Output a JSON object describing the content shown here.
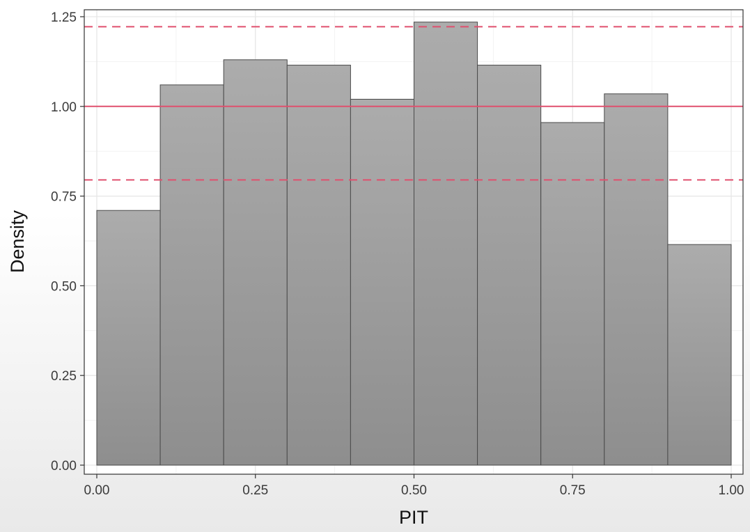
{
  "chart_data": {
    "type": "bar",
    "histogram": true,
    "title": "",
    "xlabel": "PIT",
    "ylabel": "Density",
    "bin_edges": [
      0,
      0.1,
      0.2,
      0.3,
      0.4,
      0.5,
      0.6,
      0.7,
      0.8,
      0.9,
      1.0
    ],
    "values": [
      0.71,
      1.06,
      1.13,
      1.115,
      1.02,
      1.235,
      1.115,
      0.955,
      1.035,
      0.615
    ],
    "xlim": [
      -0.02,
      1.02
    ],
    "ylim": [
      0,
      1.25
    ],
    "xticks": [
      0,
      0.25,
      0.5,
      0.75,
      1.0
    ],
    "xtick_labels": [
      "0.00",
      "0.25",
      "0.50",
      "0.75",
      "1.00"
    ],
    "yticks": [
      0,
      0.25,
      0.5,
      0.75,
      1.0,
      1.25
    ],
    "ytick_labels": [
      "0.00",
      "0.25",
      "0.50",
      "0.75",
      "1.00",
      "1.25"
    ],
    "reference_lines": [
      {
        "y": 1.0,
        "style": "solid",
        "color": "#e0506e"
      },
      {
        "y": 0.795,
        "style": "dashed",
        "color": "#e0506e"
      },
      {
        "y": 1.222,
        "style": "dashed",
        "color": "#e0506e"
      }
    ],
    "bar_color": "#a8a8a8",
    "bar_edge_color": "#4a4a4a",
    "grid": true
  }
}
